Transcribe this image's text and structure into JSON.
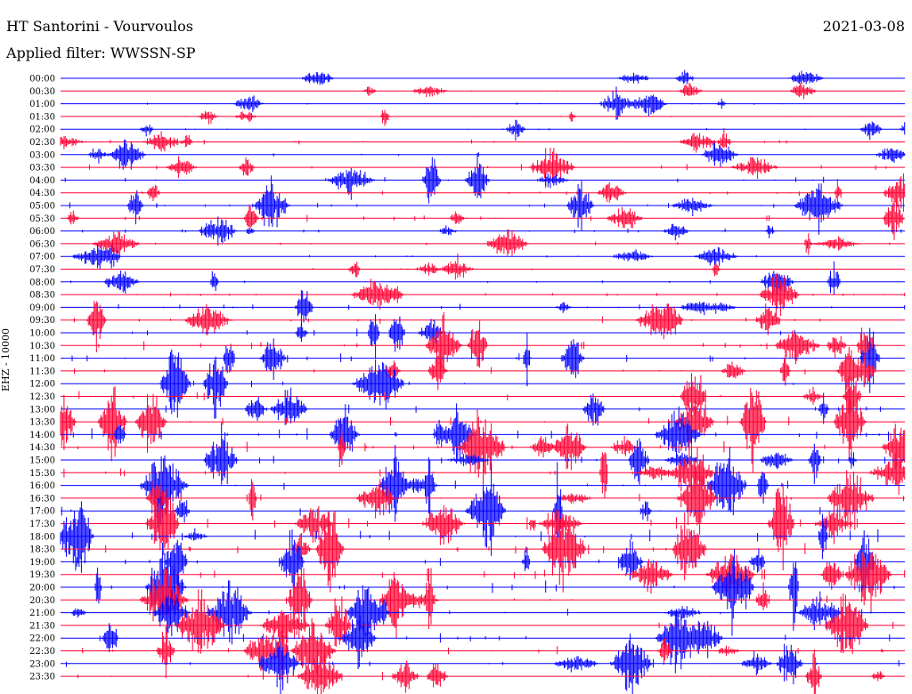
{
  "header": {
    "station": "HT Santorini - Vourvoulos",
    "filter": "Applied filter: WWSSN-SP",
    "date": "2021-03-08"
  },
  "colors": {
    "even": "#0000ff",
    "odd": "#ff0033"
  },
  "chart_data": {
    "type": "line",
    "title": "HT Santorini - Vourvoulos",
    "ylabel": "EHZ - 10000",
    "ytick_labels": [
      "00:00",
      "00:30",
      "01:00",
      "01:30",
      "02:00",
      "02:30",
      "03:00",
      "03:30",
      "04:00",
      "04:30",
      "05:00",
      "05:30",
      "06:00",
      "06:30",
      "07:00",
      "07:30",
      "08:00",
      "08:30",
      "09:00",
      "09:30",
      "10:00",
      "10:30",
      "11:00",
      "11:30",
      "12:00",
      "12:30",
      "13:00",
      "13:30",
      "14:00",
      "14:30",
      "15:00",
      "15:30",
      "16:00",
      "16:30",
      "17:00",
      "17:30",
      "18:00",
      "18:30",
      "19:00",
      "19:30",
      "20:00",
      "20:30",
      "21:00",
      "21:30",
      "22:00",
      "22:30",
      "23:00",
      "23:30"
    ],
    "trace_colors": "alternating blue / red",
    "activity": [
      0.05,
      0.06,
      0.12,
      0.08,
      0.09,
      0.22,
      0.35,
      0.3,
      0.28,
      0.25,
      0.3,
      0.28,
      0.2,
      0.18,
      0.15,
      0.12,
      0.18,
      0.2,
      0.3,
      0.32,
      0.35,
      0.36,
      0.4,
      0.42,
      0.45,
      0.5,
      0.55,
      0.55,
      0.55,
      0.5,
      0.52,
      0.5,
      0.52,
      0.55,
      0.6,
      0.58,
      0.6,
      0.55,
      0.58,
      0.5,
      0.55,
      0.48,
      0.5,
      0.45,
      0.45,
      0.4,
      0.42,
      0.38
    ]
  }
}
